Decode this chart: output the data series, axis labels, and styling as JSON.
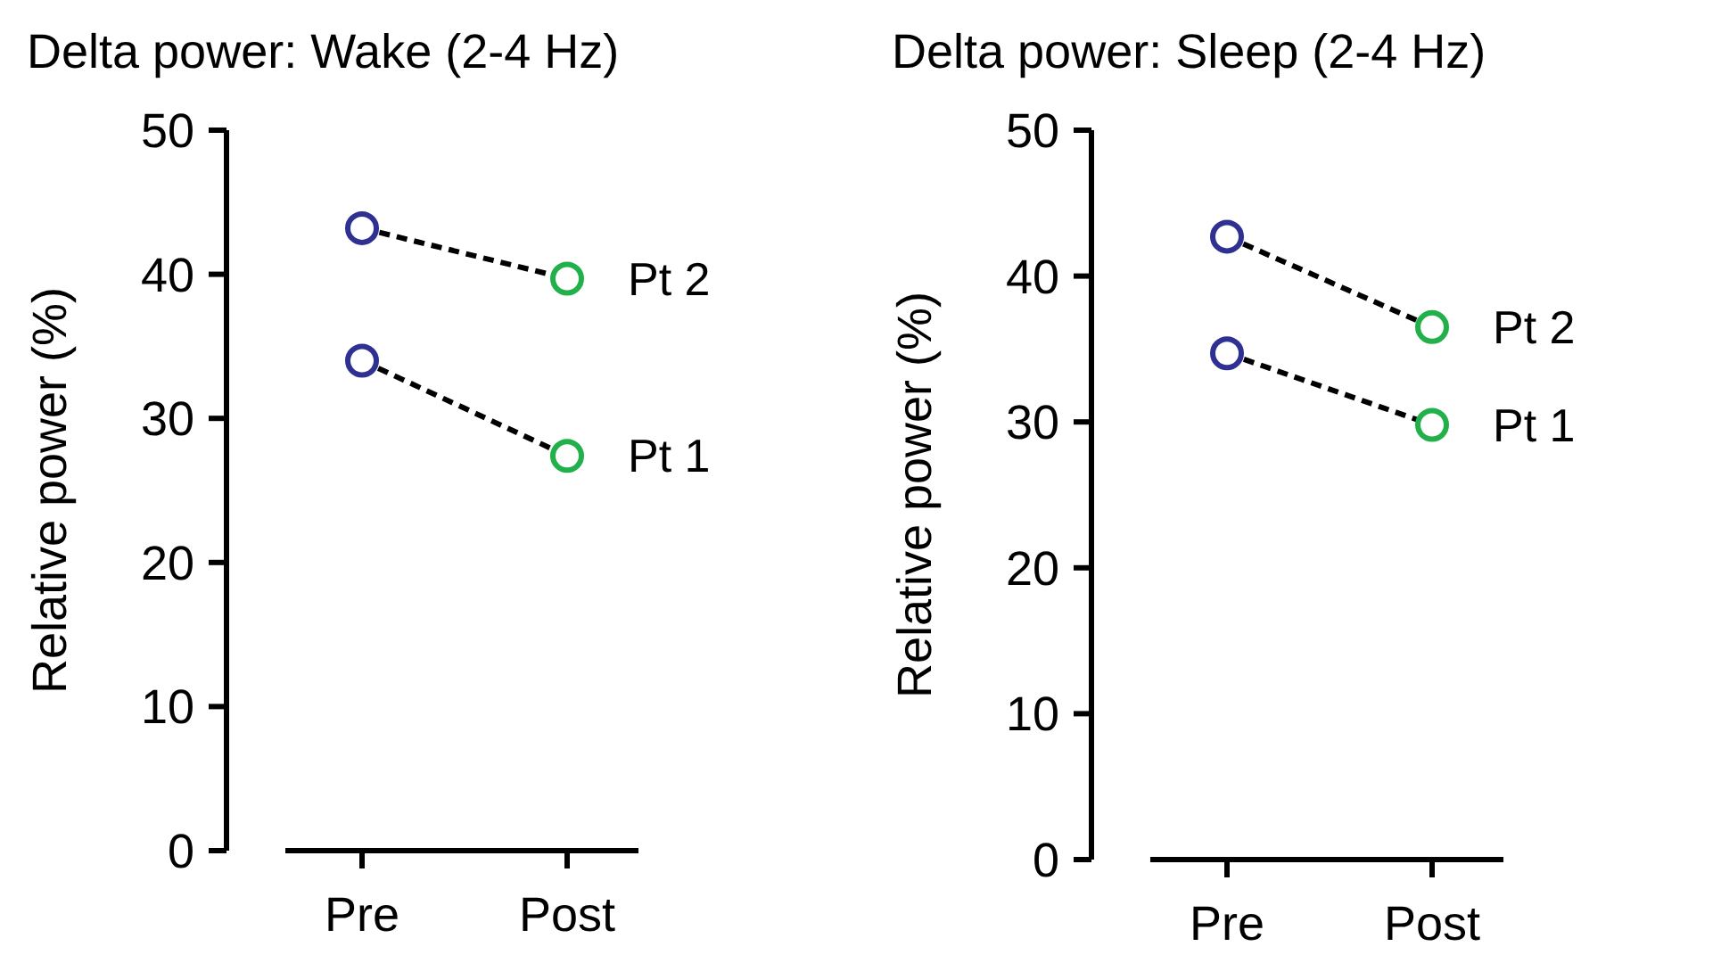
{
  "chart_data": [
    {
      "type": "line",
      "title": "Delta power: Wake (2-4 Hz)",
      "ylabel": "Relative power (%)",
      "categories": [
        "Pre",
        "Post"
      ],
      "ylim": [
        0,
        50
      ],
      "yticks": [
        0,
        10,
        20,
        30,
        40,
        50
      ],
      "marker": "circle",
      "line_style": "dashed",
      "grid": false,
      "series": [
        {
          "name": "Pt 2",
          "color": "#000000",
          "colors": [
            "#2e3192",
            "#22b04b"
          ],
          "values": [
            43.2,
            39.7
          ]
        },
        {
          "name": "Pt 1",
          "color": "#000000",
          "colors": [
            "#2e3192",
            "#22b04b"
          ],
          "values": [
            34.0,
            27.4
          ]
        }
      ]
    },
    {
      "type": "line",
      "title": "Delta power: Sleep (2-4 Hz)",
      "ylabel": "Relative power (%)",
      "categories": [
        "Pre",
        "Post"
      ],
      "ylim": [
        0,
        50
      ],
      "yticks": [
        0,
        10,
        20,
        30,
        40,
        50
      ],
      "marker": "circle",
      "line_style": "dashed",
      "grid": false,
      "series": [
        {
          "name": "Pt 2",
          "color": "#000000",
          "colors": [
            "#2e3192",
            "#22b04b"
          ],
          "values": [
            42.7,
            36.5
          ]
        },
        {
          "name": "Pt 1",
          "color": "#000000",
          "colors": [
            "#2e3192",
            "#22b04b"
          ],
          "values": [
            34.7,
            29.8
          ]
        }
      ]
    }
  ]
}
